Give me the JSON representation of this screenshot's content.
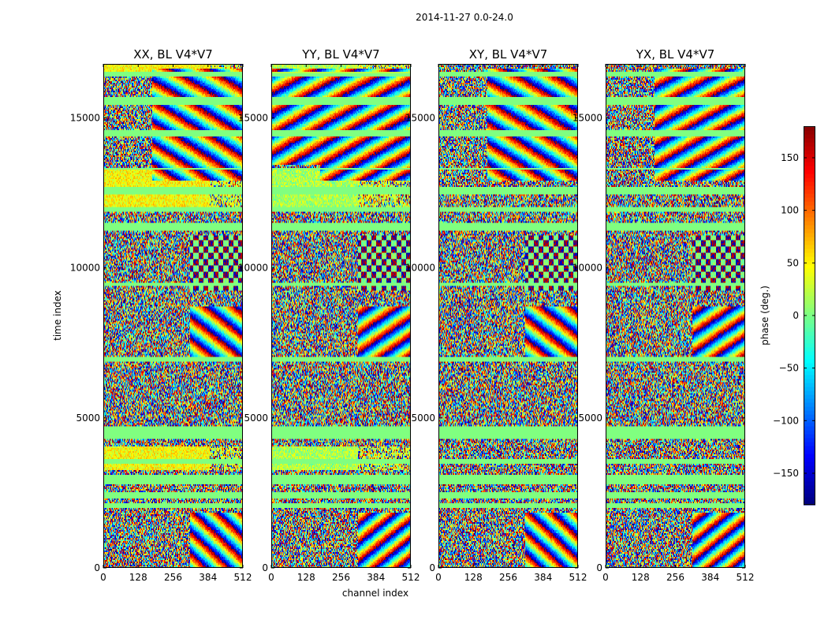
{
  "chart_data": {
    "type": "heatmap",
    "suptitle": "2014-11-27 0.0-24.0",
    "xlabel": "channel index",
    "ylabel": "time index",
    "xlim": [
      0,
      512
    ],
    "ylim": [
      0,
      16800
    ],
    "x_ticks": [
      0,
      128,
      256,
      384,
      512
    ],
    "x_tick_labels": [
      "0",
      "128",
      "256",
      "384",
      "512"
    ],
    "y_ticks": [
      0,
      5000,
      10000,
      15000
    ],
    "y_tick_labels": [
      "0",
      "5000",
      "10000",
      "15000"
    ],
    "panels": [
      {
        "title": "XX, BL V4*V7",
        "pol": "XX"
      },
      {
        "title": "YY, BL V4*V7",
        "pol": "YY"
      },
      {
        "title": "XY, BL V4*V7",
        "pol": "XY"
      },
      {
        "title": "YX, BL V4*V7",
        "pol": "YX"
      }
    ],
    "colorbar": {
      "label": "phase (deg.)",
      "range": [
        -180,
        180
      ],
      "ticks": [
        -150,
        -100,
        -50,
        0,
        50,
        100,
        150
      ],
      "tick_labels": [
        "−150",
        "−100",
        "−50",
        "0",
        "50",
        "100",
        "150"
      ],
      "colormap": "jet"
    }
  }
}
